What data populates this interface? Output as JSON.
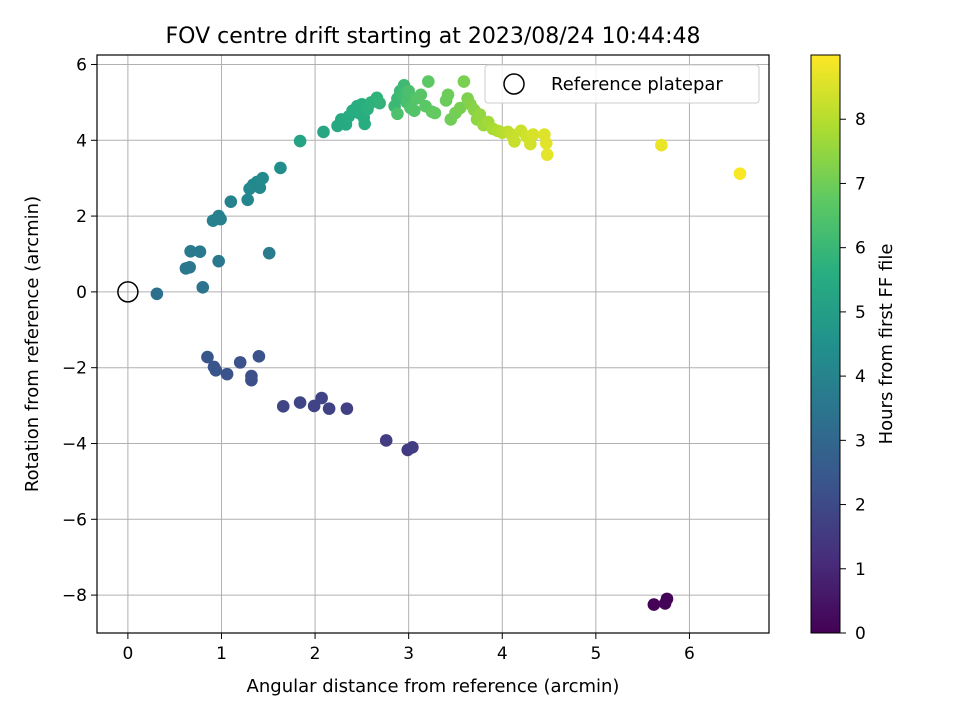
{
  "chart_data": {
    "type": "scatter",
    "title": "FOV centre drift starting at 2023/08/24 10:44:48",
    "xlabel": "Angular distance from reference (arcmin)",
    "ylabel": "Rotation from reference (arcmin)",
    "xlim": [
      -0.33,
      6.85
    ],
    "ylim": [
      -9.0,
      6.25
    ],
    "xticks": [
      0,
      1,
      2,
      3,
      4,
      5,
      6
    ],
    "yticks": [
      -8,
      -6,
      -4,
      -2,
      0,
      2,
      4,
      6
    ],
    "grid": true,
    "legend": {
      "position": "top-right",
      "entries": [
        "Reference platepar"
      ]
    },
    "reference_point": {
      "x": 0,
      "y": 0,
      "label": "Reference platepar"
    },
    "colorbar": {
      "label": "Hours from first FF file",
      "colormap": "viridis",
      "range": [
        0,
        9.0
      ],
      "ticks": [
        0,
        1,
        2,
        3,
        4,
        5,
        6,
        7,
        8
      ]
    },
    "points": [
      {
        "x": 5.62,
        "y": -8.25,
        "t": 0.05
      },
      {
        "x": 5.74,
        "y": -8.22,
        "t": 0.08
      },
      {
        "x": 5.76,
        "y": -8.1,
        "t": 0.11
      },
      {
        "x": 2.99,
        "y": -4.17,
        "t": 1.55
      },
      {
        "x": 3.04,
        "y": -4.1,
        "t": 1.6
      },
      {
        "x": 2.76,
        "y": -3.92,
        "t": 1.6
      },
      {
        "x": 2.34,
        "y": -3.08,
        "t": 1.7
      },
      {
        "x": 2.15,
        "y": -3.08,
        "t": 1.75
      },
      {
        "x": 1.99,
        "y": -3.01,
        "t": 1.8
      },
      {
        "x": 2.07,
        "y": -2.8,
        "t": 1.8
      },
      {
        "x": 1.66,
        "y": -3.02,
        "t": 1.85
      },
      {
        "x": 1.84,
        "y": -2.92,
        "t": 1.85
      },
      {
        "x": 1.32,
        "y": -2.33,
        "t": 2.15
      },
      {
        "x": 1.32,
        "y": -2.22,
        "t": 2.2
      },
      {
        "x": 1.4,
        "y": -1.7,
        "t": 2.3
      },
      {
        "x": 1.2,
        "y": -1.86,
        "t": 2.25
      },
      {
        "x": 1.06,
        "y": -2.17,
        "t": 2.3
      },
      {
        "x": 0.94,
        "y": -2.07,
        "t": 2.35
      },
      {
        "x": 0.92,
        "y": -1.98,
        "t": 2.35
      },
      {
        "x": 0.85,
        "y": -1.72,
        "t": 2.4
      },
      {
        "x": 0.31,
        "y": -0.05,
        "t": 3.3
      },
      {
        "x": 0.8,
        "y": 0.12,
        "t": 3.4
      },
      {
        "x": 0.62,
        "y": 0.62,
        "t": 3.55
      },
      {
        "x": 0.66,
        "y": 0.65,
        "t": 3.55
      },
      {
        "x": 0.97,
        "y": 0.81,
        "t": 3.6
      },
      {
        "x": 1.51,
        "y": 1.02,
        "t": 3.7
      },
      {
        "x": 0.67,
        "y": 1.07,
        "t": 3.65
      },
      {
        "x": 0.77,
        "y": 1.06,
        "t": 3.65
      },
      {
        "x": 0.91,
        "y": 1.88,
        "t": 3.9
      },
      {
        "x": 0.99,
        "y": 1.92,
        "t": 3.9
      },
      {
        "x": 0.97,
        "y": 2.0,
        "t": 3.9
      },
      {
        "x": 1.1,
        "y": 2.38,
        "t": 4.0
      },
      {
        "x": 1.28,
        "y": 2.43,
        "t": 4.05
      },
      {
        "x": 1.3,
        "y": 2.72,
        "t": 4.15
      },
      {
        "x": 1.34,
        "y": 2.83,
        "t": 4.2
      },
      {
        "x": 1.38,
        "y": 2.9,
        "t": 4.25
      },
      {
        "x": 1.41,
        "y": 2.75,
        "t": 4.2
      },
      {
        "x": 1.44,
        "y": 3.0,
        "t": 4.3
      },
      {
        "x": 1.63,
        "y": 3.27,
        "t": 4.4
      },
      {
        "x": 1.84,
        "y": 3.98,
        "t": 5.2
      },
      {
        "x": 2.09,
        "y": 4.22,
        "t": 5.3
      },
      {
        "x": 2.24,
        "y": 4.38,
        "t": 5.4
      },
      {
        "x": 2.28,
        "y": 4.55,
        "t": 5.45
      },
      {
        "x": 2.33,
        "y": 4.42,
        "t": 5.45
      },
      {
        "x": 2.36,
        "y": 4.63,
        "t": 5.5
      },
      {
        "x": 2.4,
        "y": 4.78,
        "t": 5.55
      },
      {
        "x": 2.45,
        "y": 4.9,
        "t": 5.6
      },
      {
        "x": 2.5,
        "y": 4.95,
        "t": 5.65
      },
      {
        "x": 2.47,
        "y": 4.72,
        "t": 5.6
      },
      {
        "x": 2.52,
        "y": 4.6,
        "t": 5.6
      },
      {
        "x": 2.56,
        "y": 4.82,
        "t": 5.7
      },
      {
        "x": 2.6,
        "y": 5.0,
        "t": 5.75
      },
      {
        "x": 2.53,
        "y": 4.43,
        "t": 5.6
      },
      {
        "x": 2.66,
        "y": 5.12,
        "t": 5.8
      },
      {
        "x": 2.69,
        "y": 4.98,
        "t": 5.85
      },
      {
        "x": 2.91,
        "y": 5.3,
        "t": 6.0
      },
      {
        "x": 2.88,
        "y": 5.1,
        "t": 6.0
      },
      {
        "x": 2.85,
        "y": 4.9,
        "t": 6.05
      },
      {
        "x": 2.95,
        "y": 5.45,
        "t": 6.1
      },
      {
        "x": 2.93,
        "y": 5.2,
        "t": 6.15
      },
      {
        "x": 2.98,
        "y": 5.0,
        "t": 6.3
      },
      {
        "x": 3.0,
        "y": 5.3,
        "t": 6.35
      },
      {
        "x": 2.88,
        "y": 4.7,
        "t": 6.4
      },
      {
        "x": 3.02,
        "y": 4.85,
        "t": 6.45
      },
      {
        "x": 3.06,
        "y": 4.78,
        "t": 6.5
      },
      {
        "x": 3.08,
        "y": 5.1,
        "t": 6.55
      },
      {
        "x": 3.13,
        "y": 5.2,
        "t": 6.6
      },
      {
        "x": 3.18,
        "y": 4.9,
        "t": 6.65
      },
      {
        "x": 3.21,
        "y": 5.55,
        "t": 6.7
      },
      {
        "x": 3.25,
        "y": 4.75,
        "t": 6.75
      },
      {
        "x": 3.28,
        "y": 4.72,
        "t": 6.8
      },
      {
        "x": 3.4,
        "y": 5.05,
        "t": 6.9
      },
      {
        "x": 3.42,
        "y": 5.2,
        "t": 6.95
      },
      {
        "x": 3.45,
        "y": 4.55,
        "t": 7.0
      },
      {
        "x": 3.5,
        "y": 4.72,
        "t": 7.05
      },
      {
        "x": 3.55,
        "y": 4.85,
        "t": 7.1
      },
      {
        "x": 3.59,
        "y": 5.55,
        "t": 7.15
      },
      {
        "x": 3.63,
        "y": 5.1,
        "t": 7.2
      },
      {
        "x": 3.66,
        "y": 4.95,
        "t": 7.3
      },
      {
        "x": 3.7,
        "y": 4.8,
        "t": 7.35
      },
      {
        "x": 3.73,
        "y": 4.55,
        "t": 7.45
      },
      {
        "x": 3.76,
        "y": 4.68,
        "t": 7.5
      },
      {
        "x": 3.8,
        "y": 4.4,
        "t": 7.6
      },
      {
        "x": 3.85,
        "y": 4.48,
        "t": 7.7
      },
      {
        "x": 3.9,
        "y": 4.3,
        "t": 7.8
      },
      {
        "x": 3.95,
        "y": 4.25,
        "t": 7.9
      },
      {
        "x": 4.0,
        "y": 4.2,
        "t": 8.0
      },
      {
        "x": 4.06,
        "y": 4.22,
        "t": 8.1
      },
      {
        "x": 4.1,
        "y": 4.15,
        "t": 8.2
      },
      {
        "x": 4.13,
        "y": 3.97,
        "t": 8.25
      },
      {
        "x": 4.2,
        "y": 4.25,
        "t": 8.3
      },
      {
        "x": 4.26,
        "y": 4.1,
        "t": 8.35
      },
      {
        "x": 4.3,
        "y": 3.9,
        "t": 8.4
      },
      {
        "x": 4.33,
        "y": 4.15,
        "t": 8.45
      },
      {
        "x": 4.45,
        "y": 4.15,
        "t": 8.55
      },
      {
        "x": 4.47,
        "y": 3.92,
        "t": 8.6
      },
      {
        "x": 4.48,
        "y": 3.62,
        "t": 8.65
      },
      {
        "x": 5.7,
        "y": 3.87,
        "t": 8.75
      },
      {
        "x": 6.54,
        "y": 3.12,
        "t": 8.95
      }
    ]
  }
}
